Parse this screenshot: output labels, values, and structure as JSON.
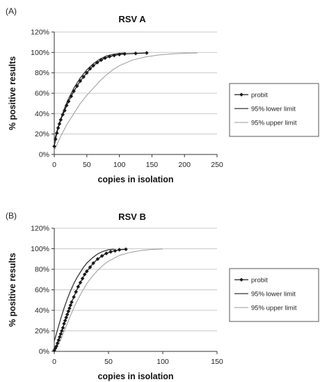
{
  "chart_data": [
    {
      "type": "line",
      "panel": "(A)",
      "title": "RSV A",
      "xlabel": "copies in isolation",
      "ylabel": "% positive results",
      "xlim": [
        0,
        250
      ],
      "ylim": [
        0,
        120
      ],
      "x_ticks": [
        "0",
        "50",
        "100",
        "150",
        "200",
        "250"
      ],
      "y_ticks": [
        "0%",
        "20%",
        "40%",
        "60%",
        "80%",
        "100%",
        "120%"
      ],
      "grid": "horizontal",
      "legend_position": "right",
      "series": [
        {
          "name": "probit",
          "style": "diamond-markers",
          "color": "#1a1a1a",
          "x": [
            0,
            2,
            4,
            6,
            8,
            10,
            13,
            16,
            19,
            22,
            26,
            30,
            35,
            40,
            45,
            50,
            55,
            60,
            66,
            72,
            78,
            85,
            92,
            100,
            108,
            125,
            142
          ],
          "y": [
            8,
            15,
            21,
            26,
            30,
            34,
            39,
            43,
            48,
            52,
            57,
            62,
            67,
            72,
            76,
            80,
            84,
            87,
            90,
            92.5,
            94.5,
            96,
            97,
            98,
            98.5,
            99,
            99.5
          ]
        },
        {
          "name": "95% lower limit",
          "style": "solid",
          "color": "#333333",
          "x": [
            0,
            5,
            10,
            15,
            20,
            30,
            40,
            50,
            60,
            70,
            80,
            90,
            100,
            110
          ],
          "y": [
            13,
            25,
            35,
            44,
            52,
            65,
            75,
            83,
            89,
            93.5,
            96.5,
            98,
            99,
            99.5
          ]
        },
        {
          "name": "95% upper limit",
          "style": "light",
          "color": "#9a9a9a",
          "x": [
            0,
            5,
            10,
            20,
            30,
            40,
            50,
            60,
            70,
            80,
            90,
            100,
            120,
            140,
            160,
            180,
            200,
            220
          ],
          "y": [
            4,
            11,
            18,
            30,
            40,
            50,
            58,
            65,
            72,
            78,
            83,
            87,
            92.5,
            95.5,
            97.5,
            98.5,
            99.2,
            99.5
          ]
        }
      ]
    },
    {
      "type": "line",
      "panel": "(B)",
      "title": "RSV B",
      "xlabel": "copies in isolation",
      "ylabel": "% positive results",
      "xlim": [
        0,
        150
      ],
      "ylim": [
        0,
        120
      ],
      "x_ticks": [
        "0",
        "50",
        "100",
        "150"
      ],
      "y_ticks": [
        "0%",
        "20%",
        "40%",
        "60%",
        "80%",
        "100%",
        "120%"
      ],
      "grid": "horizontal",
      "legend_position": "right",
      "series": [
        {
          "name": "probit",
          "style": "diamond-markers",
          "color": "#1a1a1a",
          "x": [
            0,
            1,
            2,
            3,
            4,
            5,
            6,
            7,
            8,
            9,
            10,
            11,
            12,
            13,
            14,
            15,
            16,
            18,
            20,
            22,
            24,
            26,
            28,
            30,
            33,
            36,
            40,
            44,
            48,
            52,
            56,
            60,
            66
          ],
          "y": [
            1,
            3,
            5,
            8,
            11,
            14,
            17,
            20,
            23,
            27,
            30,
            33,
            36,
            39,
            42,
            45,
            48,
            53,
            58,
            63,
            67,
            71,
            75,
            78,
            82,
            86,
            90,
            93,
            95.5,
            97,
            98,
            99,
            99.5
          ]
        },
        {
          "name": "95% lower limit",
          "style": "solid",
          "color": "#333333",
          "x": [
            0,
            3,
            6,
            9,
            12,
            15,
            18,
            21,
            24,
            27,
            30,
            35,
            40,
            45,
            50,
            55
          ],
          "y": [
            10,
            21,
            32,
            42,
            51,
            59,
            66,
            72,
            77,
            82,
            86,
            91,
            95,
            97.5,
            99,
            99.5
          ]
        },
        {
          "name": "95% upper limit",
          "style": "light",
          "color": "#9a9a9a",
          "x": [
            0,
            5,
            10,
            15,
            20,
            25,
            30,
            35,
            40,
            45,
            50,
            60,
            70,
            80,
            90,
            100
          ],
          "y": [
            0,
            9,
            22,
            35,
            47,
            57,
            66,
            73,
            79,
            84,
            88,
            93.5,
            96.5,
            98.3,
            99.3,
            99.7
          ]
        }
      ]
    }
  ]
}
